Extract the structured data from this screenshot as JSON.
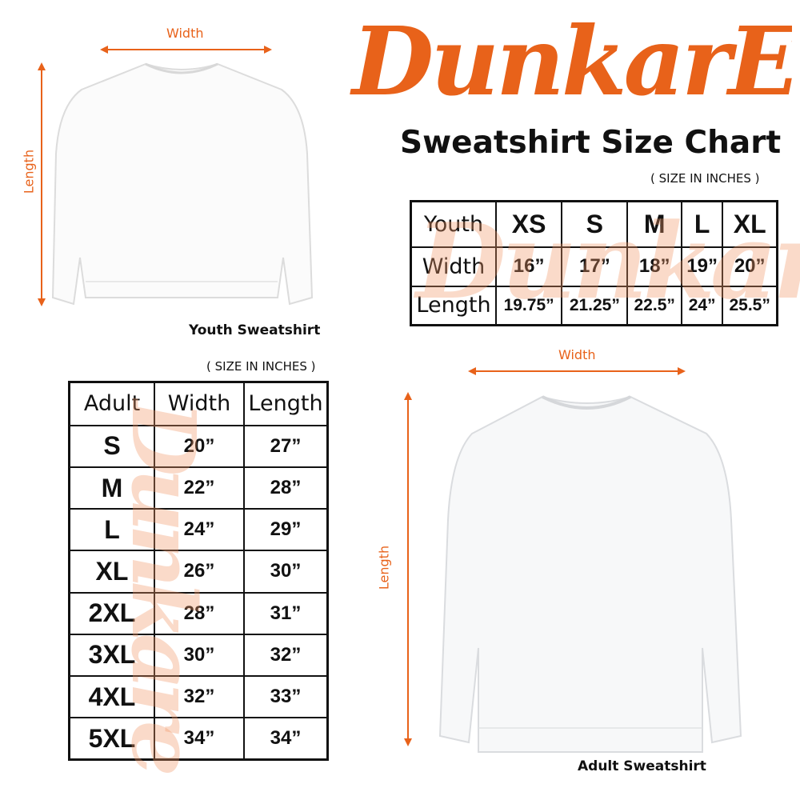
{
  "brand": {
    "logo_text": "DunkarE",
    "color": "#e8621a"
  },
  "title": "Sweatshirt Size Chart",
  "youth": {
    "dim_width": "Width",
    "dim_length": "Length",
    "caption": "Youth Sweatshirt",
    "unit_note": "( SIZE IN INCHES )",
    "table": {
      "header": [
        "Youth",
        "XS",
        "S",
        "M",
        "L",
        "XL"
      ],
      "rows": [
        [
          "Width",
          "16”",
          "17”",
          "18”",
          "19”",
          "20”"
        ],
        [
          "Length",
          "19.75”",
          "21.25”",
          "22.5”",
          "24”",
          "25.5”"
        ]
      ]
    }
  },
  "adult": {
    "dim_width": "Width",
    "dim_length": "Length",
    "caption": "Adult Sweatshirt",
    "unit_note": "( SIZE IN INCHES )",
    "table": {
      "header": [
        "Adult",
        "Width",
        "Length"
      ],
      "rows": [
        [
          "S",
          "20”",
          "27”"
        ],
        [
          "M",
          "22”",
          "28”"
        ],
        [
          "L",
          "24”",
          "29”"
        ],
        [
          "XL",
          "26”",
          "30”"
        ],
        [
          "2XL",
          "28”",
          "31”"
        ],
        [
          "3XL",
          "30”",
          "32”"
        ],
        [
          "4XL",
          "32”",
          "33”"
        ],
        [
          "5XL",
          "34”",
          "34”"
        ]
      ]
    }
  }
}
